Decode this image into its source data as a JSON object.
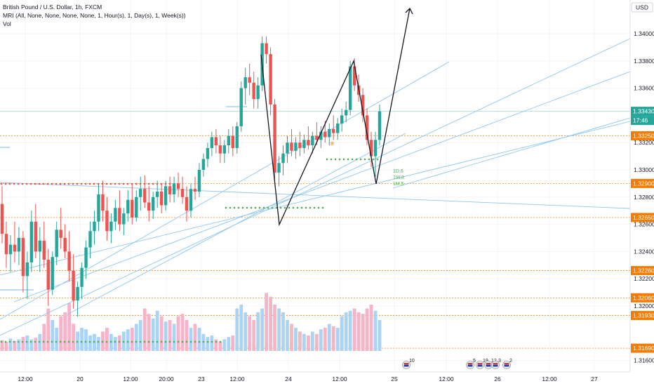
{
  "legend": {
    "title": "British Pound / U.S. Dollar, 1h, FXCM",
    "indicator": "MRI (All, None, None, None, None, 1, Hour(s), 1, Day(s), 1, Week(s))",
    "volume": "Vol"
  },
  "currency_label": "USD",
  "colors": {
    "up": "#26a69a",
    "down": "#ef5350",
    "vol_up": "#a9d4f5",
    "vol_down": "#f7b3c8",
    "trendline": "#8cc7f0",
    "level_orange": "#f57c00",
    "price_blue": "#2196f3",
    "dot_green": "#4caf50",
    "dot_red": "#ef5350",
    "pattern": "#131722"
  },
  "chart_data": {
    "type": "candlestick",
    "symbol": "GBPUSD",
    "interval": "1h",
    "y_ticks": [
      "1.34000",
      "1.33800",
      "1.33600",
      "1.33200",
      "1.33000",
      "1.32800",
      "1.32600",
      "1.32400",
      "1.32200",
      "1.32000",
      "1.31600"
    ],
    "x_ticks": [
      "12:00",
      "20",
      "12:00",
      "20:00",
      "23",
      "12:00",
      "24",
      "12:00",
      "25",
      "12:00",
      "26",
      "12:00",
      "27"
    ],
    "last_price": "1.33430",
    "countdown": "17:46",
    "price_levels": [
      "1.33250",
      "1.32900",
      "1.32650",
      "1.32260",
      "1.32060",
      "1.31930",
      "1.31690"
    ],
    "markers": [
      {
        "label": "B",
        "color": "#f57c00"
      },
      {
        "label": "1D,6",
        "color": "#4caf50"
      },
      {
        "label": "1W,8",
        "color": "#4caf50"
      },
      {
        "label": "1M,5",
        "color": "#4caf50"
      }
    ],
    "event_badges": [
      "10",
      "5",
      "19",
      "12",
      "3",
      "2"
    ],
    "candles": [
      [
        1.3275,
        1.3288,
        1.3246,
        1.3253
      ],
      [
        1.3253,
        1.3262,
        1.3228,
        1.3238
      ],
      [
        1.3238,
        1.3252,
        1.3225,
        1.3245
      ],
      [
        1.3245,
        1.3262,
        1.3232,
        1.324
      ],
      [
        1.324,
        1.3258,
        1.323,
        1.325
      ],
      [
        1.325,
        1.3255,
        1.321,
        1.3222
      ],
      [
        1.3222,
        1.324,
        1.3205,
        1.3232
      ],
      [
        1.3232,
        1.327,
        1.3225,
        1.3262
      ],
      [
        1.3262,
        1.3275,
        1.3235,
        1.324
      ],
      [
        1.324,
        1.3258,
        1.3225,
        1.3248
      ],
      [
        1.3248,
        1.3262,
        1.3228,
        1.3234
      ],
      [
        1.3234,
        1.3242,
        1.32,
        1.3212
      ],
      [
        1.3212,
        1.324,
        1.3208,
        1.3236
      ],
      [
        1.3236,
        1.3262,
        1.323,
        1.3256
      ],
      [
        1.3256,
        1.3272,
        1.3242,
        1.325
      ],
      [
        1.325,
        1.326,
        1.3235,
        1.324
      ],
      [
        1.324,
        1.3255,
        1.3218,
        1.3226
      ],
      [
        1.3226,
        1.3238,
        1.3198,
        1.3204
      ],
      [
        1.3204,
        1.3218,
        1.3192,
        1.3214
      ],
      [
        1.3214,
        1.3232,
        1.3205,
        1.3228
      ],
      [
        1.3228,
        1.3248,
        1.322,
        1.3243
      ],
      [
        1.3243,
        1.3262,
        1.3235,
        1.3255
      ],
      [
        1.3255,
        1.327,
        1.3245,
        1.3262
      ],
      [
        1.3262,
        1.329,
        1.3255,
        1.3282
      ],
      [
        1.3282,
        1.3292,
        1.3262,
        1.327
      ],
      [
        1.327,
        1.328,
        1.3248,
        1.3255
      ],
      [
        1.3255,
        1.3268,
        1.3246,
        1.3262
      ],
      [
        1.3262,
        1.3278,
        1.3256,
        1.3272
      ],
      [
        1.3272,
        1.3285,
        1.3255,
        1.326
      ],
      [
        1.326,
        1.3272,
        1.3252,
        1.3268
      ],
      [
        1.3268,
        1.3285,
        1.3262,
        1.3278
      ],
      [
        1.3278,
        1.329,
        1.326,
        1.3265
      ],
      [
        1.3265,
        1.3285,
        1.3262,
        1.328
      ],
      [
        1.328,
        1.3295,
        1.327,
        1.3286
      ],
      [
        1.3286,
        1.3296,
        1.3272,
        1.3276
      ],
      [
        1.3276,
        1.3288,
        1.3262,
        1.327
      ],
      [
        1.327,
        1.3284,
        1.3264,
        1.328
      ],
      [
        1.328,
        1.3292,
        1.3272,
        1.3284
      ],
      [
        1.3284,
        1.329,
        1.3268,
        1.3274
      ],
      [
        1.3274,
        1.3292,
        1.327,
        1.3288
      ],
      [
        1.3288,
        1.3295,
        1.3276,
        1.3282
      ],
      [
        1.3282,
        1.3295,
        1.3276,
        1.329
      ],
      [
        1.329,
        1.3298,
        1.328,
        1.3286
      ],
      [
        1.3286,
        1.3295,
        1.3275,
        1.328
      ],
      [
        1.328,
        1.3288,
        1.3262,
        1.327
      ],
      [
        1.327,
        1.329,
        1.3265,
        1.3286
      ],
      [
        1.3286,
        1.3295,
        1.3278,
        1.3284
      ],
      [
        1.3284,
        1.3305,
        1.328,
        1.33
      ],
      [
        1.33,
        1.3312,
        1.3295,
        1.3308
      ],
      [
        1.3308,
        1.332,
        1.3302,
        1.3316
      ],
      [
        1.3316,
        1.3328,
        1.331,
        1.3324
      ],
      [
        1.3324,
        1.333,
        1.3312,
        1.3318
      ],
      [
        1.3318,
        1.3325,
        1.3305,
        1.3312
      ],
      [
        1.3312,
        1.3322,
        1.3305,
        1.3318
      ],
      [
        1.3318,
        1.333,
        1.3312,
        1.3325
      ],
      [
        1.3325,
        1.3332,
        1.331,
        1.3316
      ],
      [
        1.3316,
        1.3335,
        1.3312,
        1.3332
      ],
      [
        1.3332,
        1.3365,
        1.3328,
        1.336
      ],
      [
        1.336,
        1.3375,
        1.3348,
        1.3368
      ],
      [
        1.3368,
        1.3378,
        1.3355,
        1.3364
      ],
      [
        1.3364,
        1.3372,
        1.3345,
        1.3352
      ],
      [
        1.3352,
        1.3368,
        1.3345,
        1.3362
      ],
      [
        1.3362,
        1.3398,
        1.3358,
        1.3393
      ],
      [
        1.3393,
        1.3398,
        1.3378,
        1.3385
      ],
      [
        1.3385,
        1.339,
        1.334,
        1.3348
      ],
      [
        1.3348,
        1.3352,
        1.329,
        1.3298
      ],
      [
        1.3298,
        1.331,
        1.3288,
        1.3305
      ],
      [
        1.3305,
        1.3318,
        1.3296,
        1.3312
      ],
      [
        1.3312,
        1.3325,
        1.3305,
        1.332
      ],
      [
        1.332,
        1.333,
        1.331,
        1.3314
      ],
      [
        1.3314,
        1.3324,
        1.3308,
        1.332
      ],
      [
        1.332,
        1.3328,
        1.331,
        1.3316
      ],
      [
        1.3316,
        1.3326,
        1.3312,
        1.3322
      ],
      [
        1.3322,
        1.3332,
        1.3315,
        1.3318
      ],
      [
        1.3318,
        1.3328,
        1.3312,
        1.3325
      ],
      [
        1.3325,
        1.3335,
        1.3318,
        1.3322
      ],
      [
        1.3322,
        1.3332,
        1.3316,
        1.3328
      ],
      [
        1.3328,
        1.3336,
        1.332,
        1.3324
      ],
      [
        1.3324,
        1.3334,
        1.3318,
        1.333
      ],
      [
        1.333,
        1.334,
        1.3322,
        1.3327
      ],
      [
        1.3327,
        1.3338,
        1.3322,
        1.3334
      ],
      [
        1.3334,
        1.3345,
        1.3328,
        1.334
      ],
      [
        1.334,
        1.335,
        1.3335,
        1.3344
      ],
      [
        1.3344,
        1.338,
        1.334,
        1.3376
      ],
      [
        1.3376,
        1.3382,
        1.3358,
        1.3362
      ],
      [
        1.3362,
        1.337,
        1.335,
        1.3355
      ],
      [
        1.3355,
        1.336,
        1.3335,
        1.334
      ],
      [
        1.334,
        1.3345,
        1.3318,
        1.3322
      ],
      [
        1.3322,
        1.3328,
        1.3302,
        1.331
      ],
      [
        1.331,
        1.3328,
        1.3295,
        1.3322
      ],
      [
        1.3322,
        1.3348,
        1.3318,
        1.3343
      ]
    ],
    "volumes": [
      0.14,
      0.12,
      0.16,
      0.13,
      0.15,
      0.18,
      0.2,
      0.15,
      0.17,
      0.22,
      0.35,
      0.55,
      0.4,
      0.3,
      0.45,
      0.5,
      0.62,
      0.35,
      0.25,
      0.3,
      0.28,
      0.2,
      0.22,
      0.18,
      0.25,
      0.3,
      0.22,
      0.18,
      0.2,
      0.25,
      0.28,
      0.3,
      0.35,
      0.4,
      0.55,
      0.48,
      0.42,
      0.52,
      0.45,
      0.38,
      0.4,
      0.35,
      0.45,
      0.48,
      0.4,
      0.3,
      0.35,
      0.3,
      0.22,
      0.18,
      0.2,
      0.15,
      0.12,
      0.15,
      0.18,
      0.2,
      0.55,
      0.6,
      0.5,
      0.45,
      0.4,
      0.5,
      0.55,
      0.75,
      0.7,
      0.6,
      0.55,
      0.5,
      0.4,
      0.35,
      0.3,
      0.25,
      0.22,
      0.2,
      0.25,
      0.22,
      0.28,
      0.3,
      0.35,
      0.32,
      0.3,
      0.45,
      0.5,
      0.52,
      0.55,
      0.5,
      0.48,
      0.55,
      0.6,
      0.52,
      0.4
    ]
  }
}
